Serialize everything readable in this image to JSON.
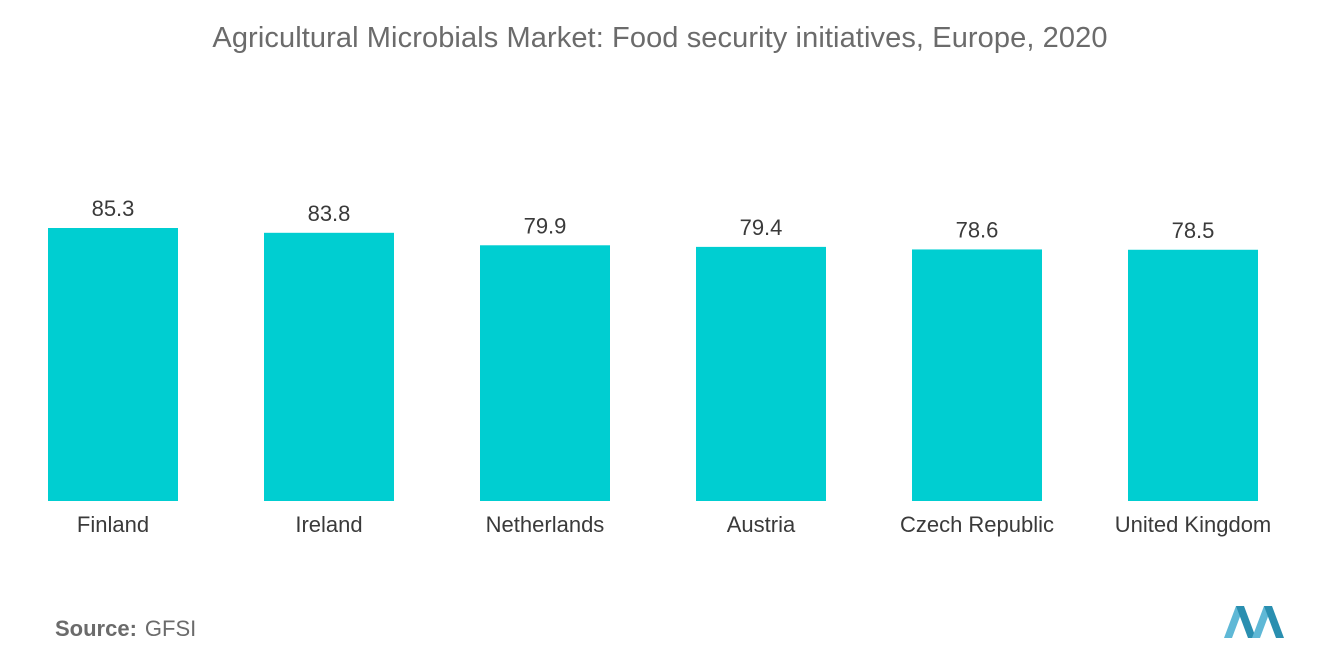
{
  "title": "Agricultural Microbials Market:  Food security initiatives, Europe, 2020",
  "source": {
    "label": "Source:",
    "value": "GFSI"
  },
  "colors": {
    "bar": "#00CED1",
    "text": "#3a3a3a",
    "muted": "#6b6b6b",
    "logo_light": "#5fb8d6",
    "logo_dark": "#2a8fb0"
  },
  "chart_data": {
    "type": "bar",
    "categories": [
      "Finland",
      "Ireland",
      "Netherlands",
      "Austria",
      "Czech Republic",
      "United Kingdom"
    ],
    "values": [
      85.3,
      83.8,
      79.9,
      79.4,
      78.6,
      78.5
    ],
    "value_labels": [
      "85.3",
      "83.8",
      "79.9",
      "79.4",
      "78.6",
      "78.5"
    ],
    "title": "Agricultural Microbials Market:  Food security initiatives, Europe, 2020",
    "xlabel": "",
    "ylabel": "",
    "ylim": [
      0,
      85.3
    ],
    "grid": false,
    "legend": "none"
  }
}
